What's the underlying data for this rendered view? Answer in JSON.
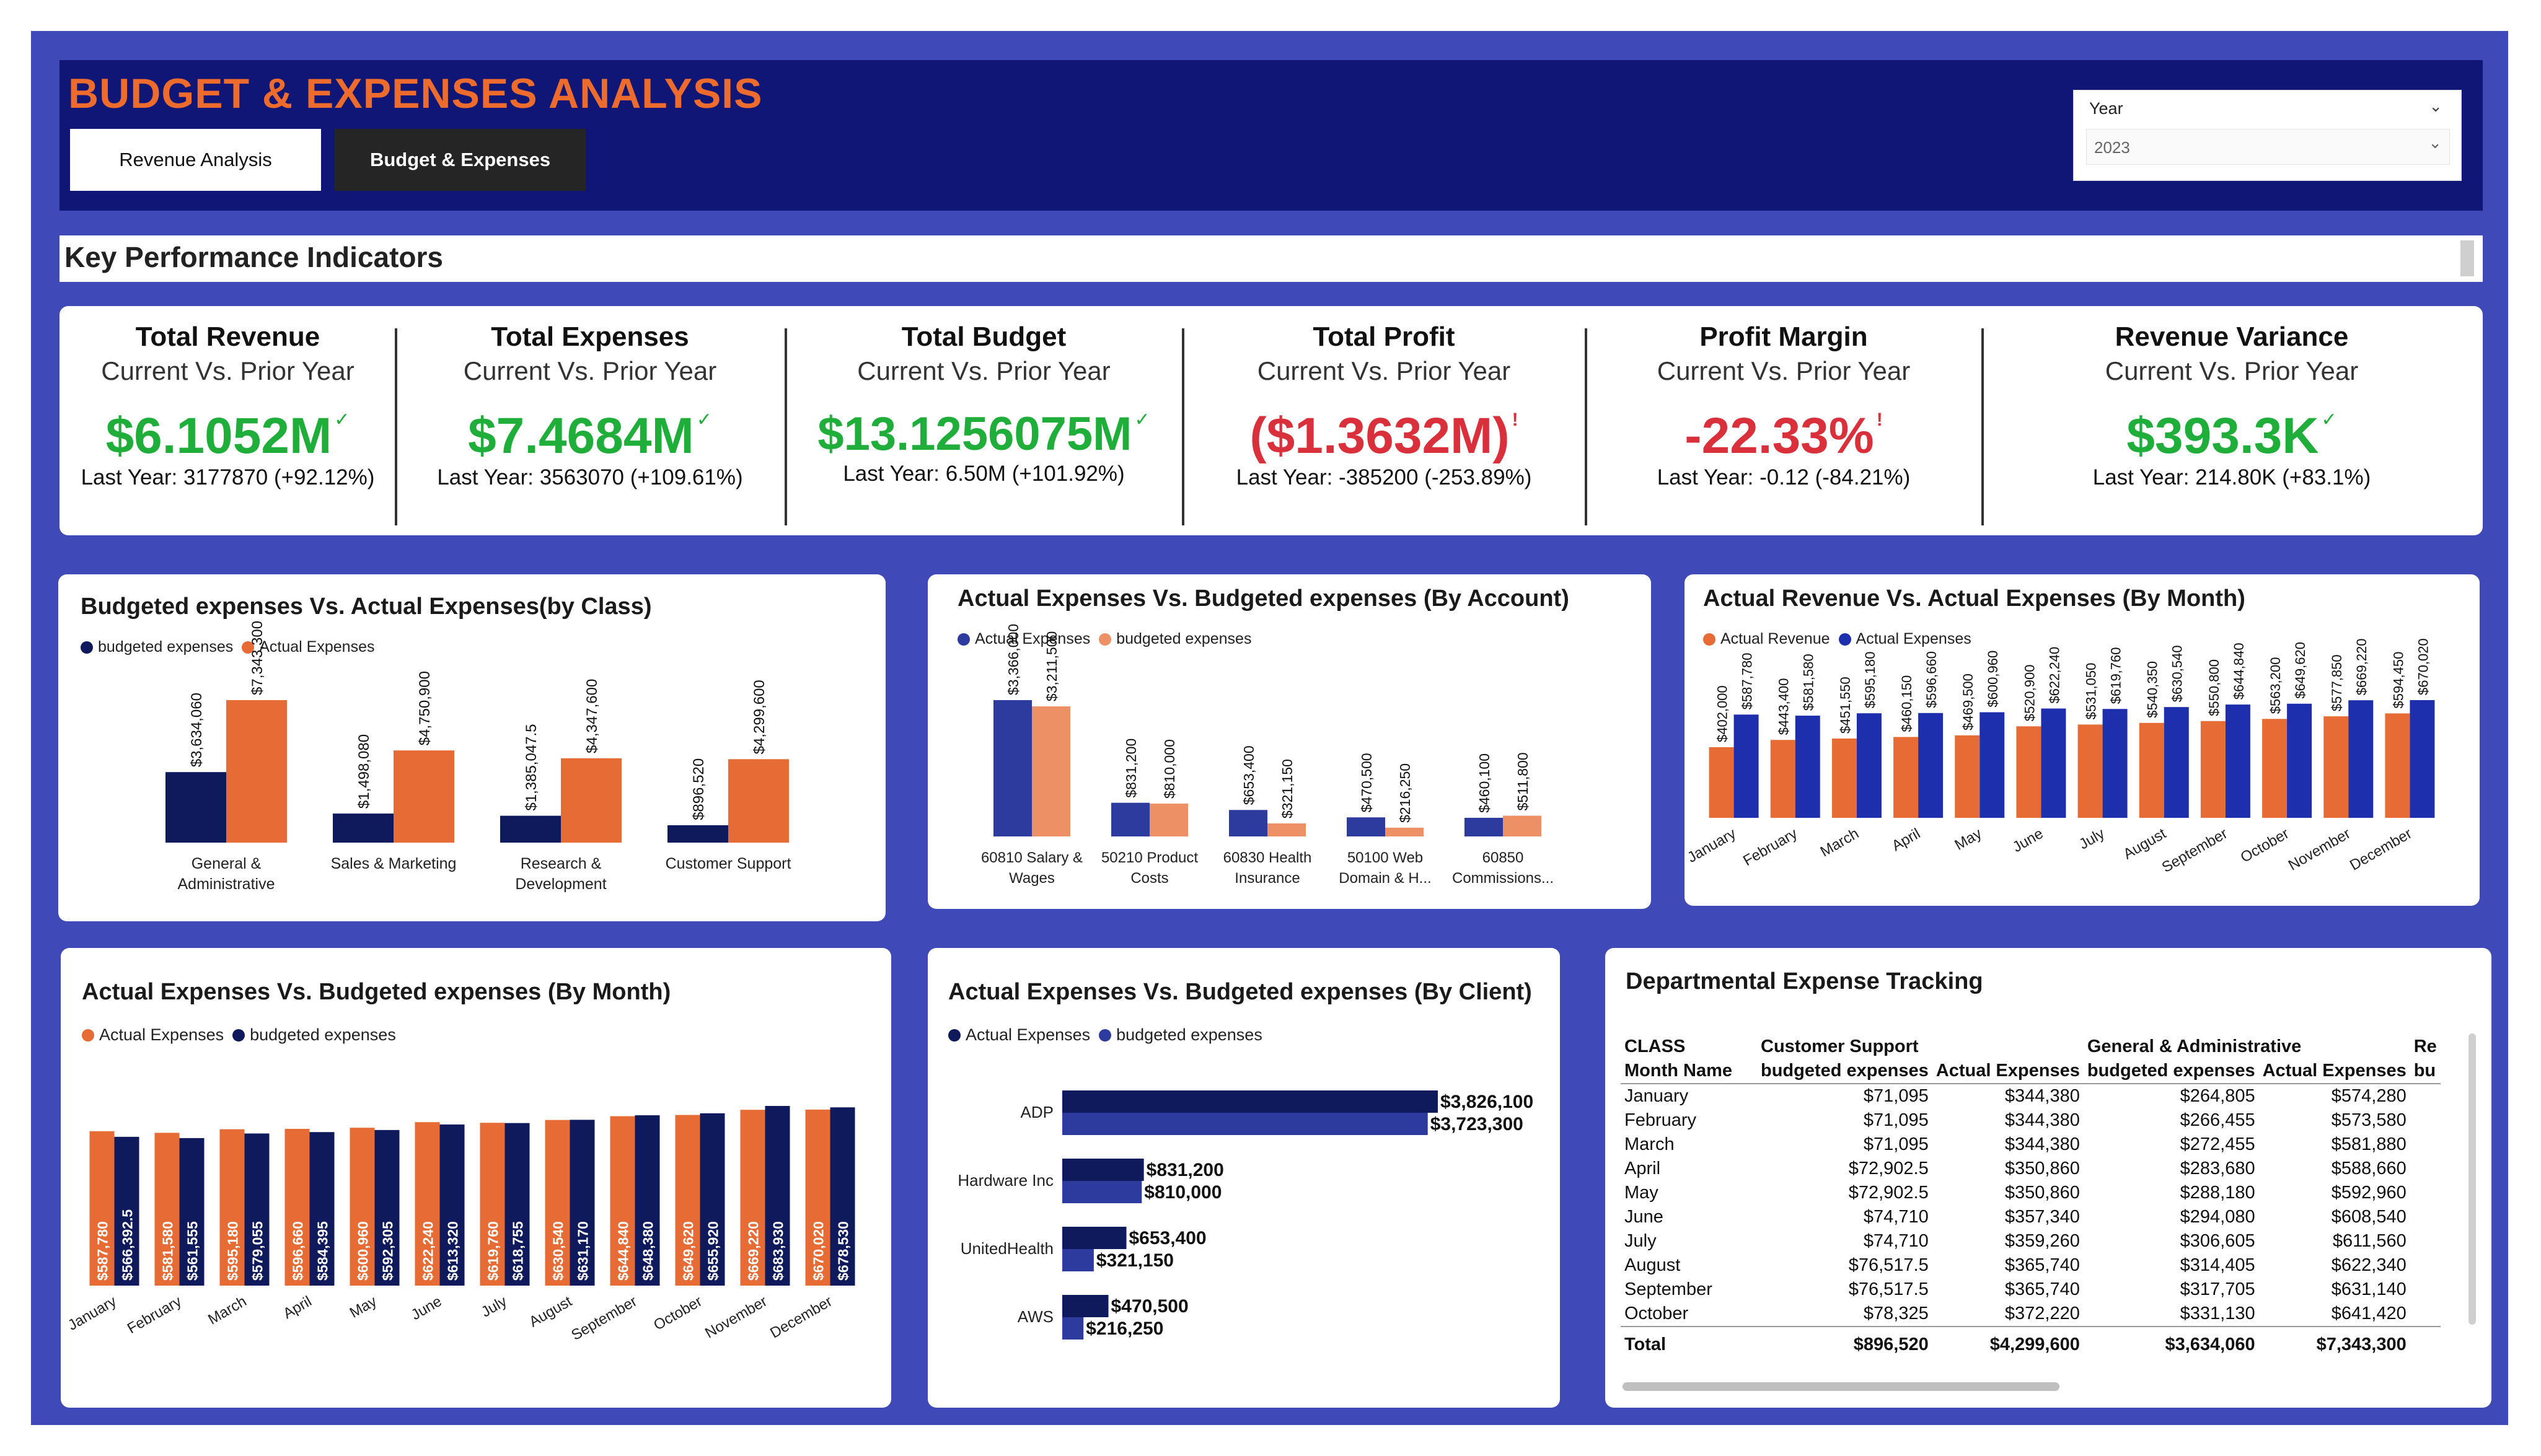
{
  "header": {
    "title": "BUDGET & EXPENSES ANALYSIS",
    "tabs": [
      "Revenue Analysis",
      "Budget & Expenses"
    ]
  },
  "slicer": {
    "label": "Year",
    "value": "2023"
  },
  "kpi_section_title": "Key Performance Indicators",
  "kpis": [
    {
      "title": "Total Revenue",
      "sub": "Current Vs. Prior Year",
      "value": "$6.1052M",
      "status": "good",
      "last": "Last Year: 3177870 (+92.12%)"
    },
    {
      "title": "Total Expenses",
      "sub": "Current Vs. Prior Year",
      "value": "$7.4684M",
      "status": "good",
      "last": "Last Year: 3563070 (+109.61%)"
    },
    {
      "title": "Total Budget",
      "sub": "Current Vs. Prior Year",
      "value": "$13.1256075M",
      "status": "good",
      "last": "Last Year: 6.50M (+101.92%)"
    },
    {
      "title": "Total Profit",
      "sub": "Current Vs. Prior Year",
      "value": "($1.3632M)",
      "status": "bad",
      "last": "Last Year: -385200 (-253.89%)"
    },
    {
      "title": "Profit Margin",
      "sub": "Current Vs. Prior Year",
      "value": "-22.33%",
      "status": "bad",
      "last": "Last Year: -0.12 (-84.21%)"
    },
    {
      "title": "Revenue Variance",
      "sub": "Current Vs. Prior Year",
      "value": "$393.3K",
      "status": "good",
      "last": "Last Year: 214.80K (+83.1%)"
    }
  ],
  "colors": {
    "navy": "#0f1a5c",
    "orange": "#e66b34",
    "blue": "#1e2fae",
    "lightorange": "#ed9066",
    "midblue": "#2d3a9e",
    "good": "#1fae3a",
    "bad": "#d9303b"
  },
  "chart_data": [
    {
      "id": "by_class",
      "type": "bar",
      "title": "Budgeted expenses Vs. Actual Expenses(by Class)",
      "categories": [
        "General & Administrative",
        "Sales & Marketing",
        "Research & Development",
        "Customer Support"
      ],
      "series": [
        {
          "name": "budgeted expenses",
          "values": [
            3634060,
            1498080,
            1385047.5,
            896520
          ],
          "labels": [
            "$3,634,060",
            "$1,498,080",
            "$1,385,047.5",
            "$896,520"
          ]
        },
        {
          "name": "Actual Expenses",
          "values": [
            7343300,
            4750900,
            4347600,
            4299600
          ],
          "labels": [
            "$7,343,300",
            "$4,750,900",
            "$4,347,600",
            "$4,299,600"
          ]
        }
      ]
    },
    {
      "id": "by_account",
      "type": "bar",
      "title": "Actual Expenses Vs. Budgeted expenses (By Account)",
      "categories": [
        "60810 Salary & Wages",
        "50210 Product Costs",
        "60830 Health Insurance",
        "50100 Web Domain & H...",
        "60850 Commissions..."
      ],
      "series": [
        {
          "name": "Actual Expenses",
          "values": [
            3366000,
            831200,
            653400,
            470500,
            460100
          ],
          "labels": [
            "$3,366,000",
            "$831,200",
            "$653,400",
            "$470,500",
            "$460,100"
          ]
        },
        {
          "name": "budgeted expenses",
          "values": [
            3211500,
            810000,
            321150,
            216250,
            511800
          ],
          "labels": [
            "$3,211,500",
            "$810,000",
            "$321,150",
            "$216,250",
            "$511,800"
          ]
        }
      ]
    },
    {
      "id": "rev_vs_exp_month",
      "type": "bar",
      "title": "Actual Revenue Vs. Actual Expenses (By Month)",
      "categories": [
        "January",
        "February",
        "March",
        "April",
        "May",
        "June",
        "July",
        "August",
        "September",
        "October",
        "November",
        "December"
      ],
      "series": [
        {
          "name": "Actual Revenue",
          "values": [
            402000,
            443400,
            451550,
            460150,
            469500,
            520900,
            531050,
            540350,
            550800,
            563200,
            577850,
            594450
          ],
          "labels": [
            "$402,000",
            "$443,400",
            "$451,550",
            "$460,150",
            "$469,500",
            "$520,900",
            "$531,050",
            "$540,350",
            "$550,800",
            "$563,200",
            "$577,850",
            "$594,450"
          ]
        },
        {
          "name": "Actual Expenses",
          "values": [
            587780,
            581580,
            595180,
            596660,
            600960,
            622240,
            619760,
            630540,
            644840,
            649620,
            669220,
            670020
          ],
          "labels": [
            "$587,780",
            "$581,580",
            "$595,180",
            "$596,660",
            "$600,960",
            "$622,240",
            "$619,760",
            "$630,540",
            "$644,840",
            "$649,620",
            "$669,220",
            "$670,020"
          ]
        }
      ]
    },
    {
      "id": "exp_vs_bud_month",
      "type": "bar",
      "title": "Actual Expenses Vs. Budgeted expenses (By Month)",
      "categories": [
        "January",
        "February",
        "March",
        "April",
        "May",
        "June",
        "July",
        "August",
        "September",
        "October",
        "November",
        "December"
      ],
      "series": [
        {
          "name": "Actual Expenses",
          "values": [
            587780,
            581580,
            595180,
            596660,
            600960,
            622240,
            619760,
            630540,
            644840,
            649620,
            669220,
            670020
          ],
          "labels": [
            "$587,780",
            "$581,580",
            "$595,180",
            "$596,660",
            "$600,960",
            "$622,240",
            "$619,760",
            "$630,540",
            "$644,840",
            "$649,620",
            "$669,220",
            "$670,020"
          ]
        },
        {
          "name": "budgeted expenses",
          "values": [
            566392.5,
            561555,
            579055,
            584395,
            592305,
            613320,
            618755,
            631170,
            648380,
            655920,
            683930,
            678530
          ],
          "labels": [
            "$566,392.5",
            "$561,555",
            "$579,055",
            "$584,395",
            "$592,305",
            "$613,320",
            "$618,755",
            "$631,170",
            "$648,380",
            "$655,920",
            "$683,930",
            "$678,530"
          ]
        }
      ]
    },
    {
      "id": "by_client",
      "type": "hbar",
      "title": "Actual Expenses Vs. Budgeted expenses (By Client)",
      "categories": [
        "ADP",
        "Hardware Inc",
        "UnitedHealth",
        "AWS"
      ],
      "series": [
        {
          "name": "Actual Expenses",
          "values": [
            3826100,
            831200,
            653400,
            470500
          ],
          "labels": [
            "$3,826,100",
            "$831,200",
            "$653,400",
            "$470,500"
          ]
        },
        {
          "name": "budgeted expenses",
          "values": [
            3723300,
            810000,
            321150,
            216250
          ],
          "labels": [
            "$3,723,300",
            "$810,000",
            "$321,150",
            "$216,250"
          ]
        }
      ]
    }
  ],
  "dept_table": {
    "title": "Departmental Expense Tracking",
    "class_label": "CLASS",
    "month_label": "Month Name",
    "groups": [
      "Customer Support",
      "General & Administrative",
      "Re"
    ],
    "subheaders": [
      "budgeted expenses",
      "Actual Expenses",
      "budgeted expenses",
      "Actual Expenses",
      "bu"
    ],
    "rows": [
      [
        "January",
        "$71,095",
        "$344,380",
        "$264,805",
        "$574,280"
      ],
      [
        "February",
        "$71,095",
        "$344,380",
        "$266,455",
        "$573,580"
      ],
      [
        "March",
        "$71,095",
        "$344,380",
        "$272,455",
        "$581,880"
      ],
      [
        "April",
        "$72,902.5",
        "$350,860",
        "$283,680",
        "$588,660"
      ],
      [
        "May",
        "$72,902.5",
        "$350,860",
        "$288,180",
        "$592,960"
      ],
      [
        "June",
        "$74,710",
        "$357,340",
        "$294,080",
        "$608,540"
      ],
      [
        "July",
        "$74,710",
        "$359,260",
        "$306,605",
        "$611,560"
      ],
      [
        "August",
        "$76,517.5",
        "$365,740",
        "$314,405",
        "$622,340"
      ],
      [
        "September",
        "$76,517.5",
        "$365,740",
        "$317,705",
        "$631,140"
      ],
      [
        "October",
        "$78,325",
        "$372,220",
        "$331,130",
        "$641,420"
      ]
    ],
    "total": [
      "Total",
      "$896,520",
      "$4,299,600",
      "$3,634,060",
      "$7,343,300"
    ]
  }
}
